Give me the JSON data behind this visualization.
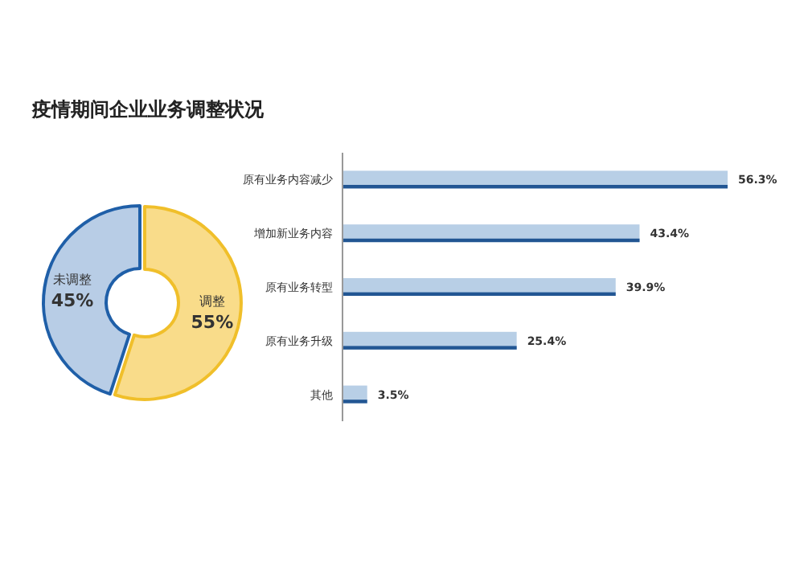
{
  "chart_data": [
    {
      "type": "donut",
      "title": "疫情期间企业业务调整状况",
      "categories": [
        "未调整",
        "调整"
      ],
      "values": [
        45,
        55
      ],
      "colors": [
        "#b8cde6",
        "#f9dc8a"
      ],
      "value_labels": [
        "45%",
        "55%"
      ]
    },
    {
      "type": "bar",
      "orientation": "horizontal",
      "categories": [
        "原有业务内容减少",
        "增加新业务内容",
        "原有业务转型",
        "原有业务升级",
        "其他"
      ],
      "values": [
        56.3,
        43.4,
        39.9,
        25.4,
        3.5
      ],
      "color": "#b8cfe6",
      "value_labels": [
        "56.3%",
        "43.4%",
        "39.9%",
        "25.4%",
        "3.5%"
      ]
    }
  ]
}
